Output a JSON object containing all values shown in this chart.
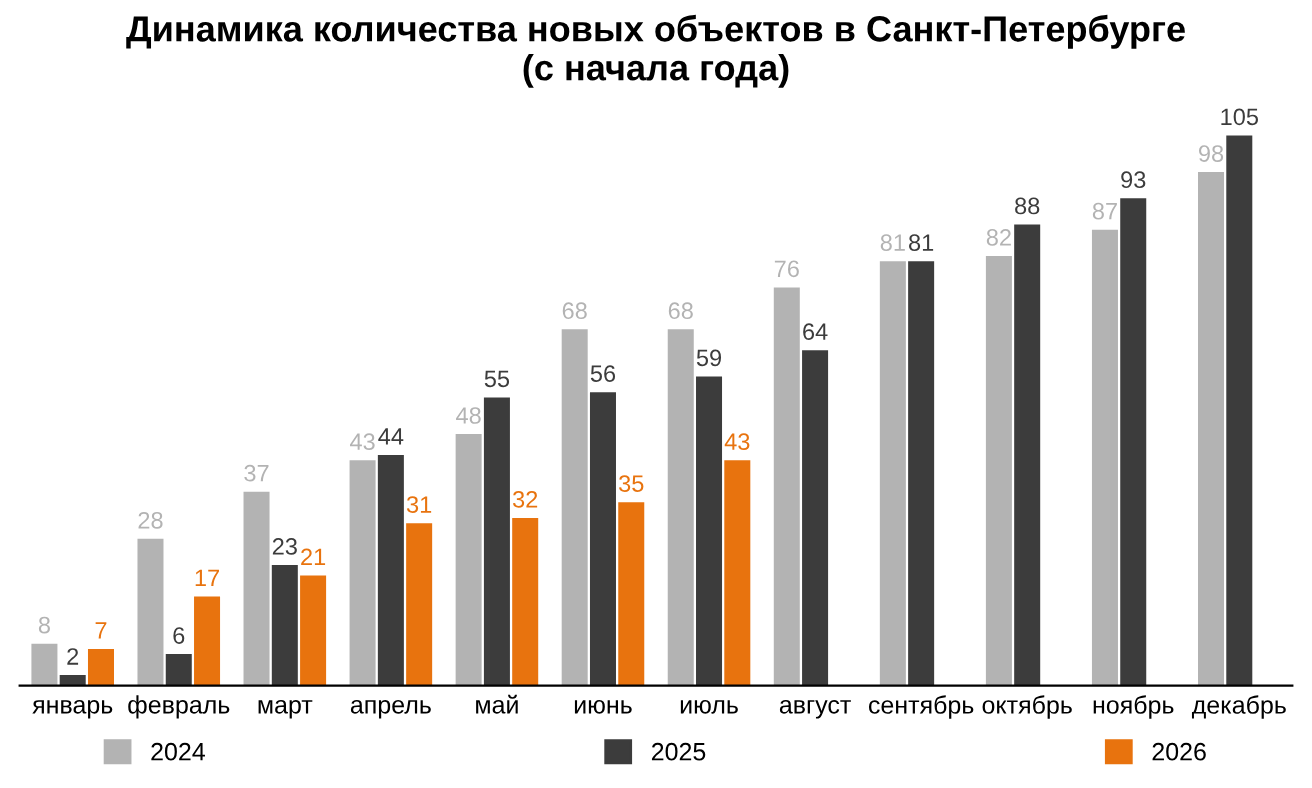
{
  "chart_data": {
    "type": "bar",
    "title": "Динамика количества новых объектов в Санкт-Петербурге\n(с начала года)",
    "categories": [
      "январь",
      "февраль",
      "март",
      "апрель",
      "май",
      "июнь",
      "июль",
      "август",
      "сентябрь",
      "октябрь",
      "ноябрь",
      "декабрь"
    ],
    "series": [
      {
        "name": "2024",
        "color": "#b3b3b3",
        "values": [
          8,
          28,
          37,
          43,
          48,
          68,
          68,
          76,
          81,
          82,
          87,
          98
        ]
      },
      {
        "name": "2025",
        "color": "#3c3c3c",
        "values": [
          2,
          6,
          23,
          44,
          55,
          56,
          59,
          64,
          81,
          88,
          93,
          105
        ]
      },
      {
        "name": "2026",
        "color": "#e8730e",
        "values": [
          7,
          17,
          21,
          31,
          32,
          35,
          43,
          null,
          null,
          null,
          null,
          null
        ]
      }
    ],
    "data_labels": true,
    "legend": "bottom",
    "grid": false
  }
}
